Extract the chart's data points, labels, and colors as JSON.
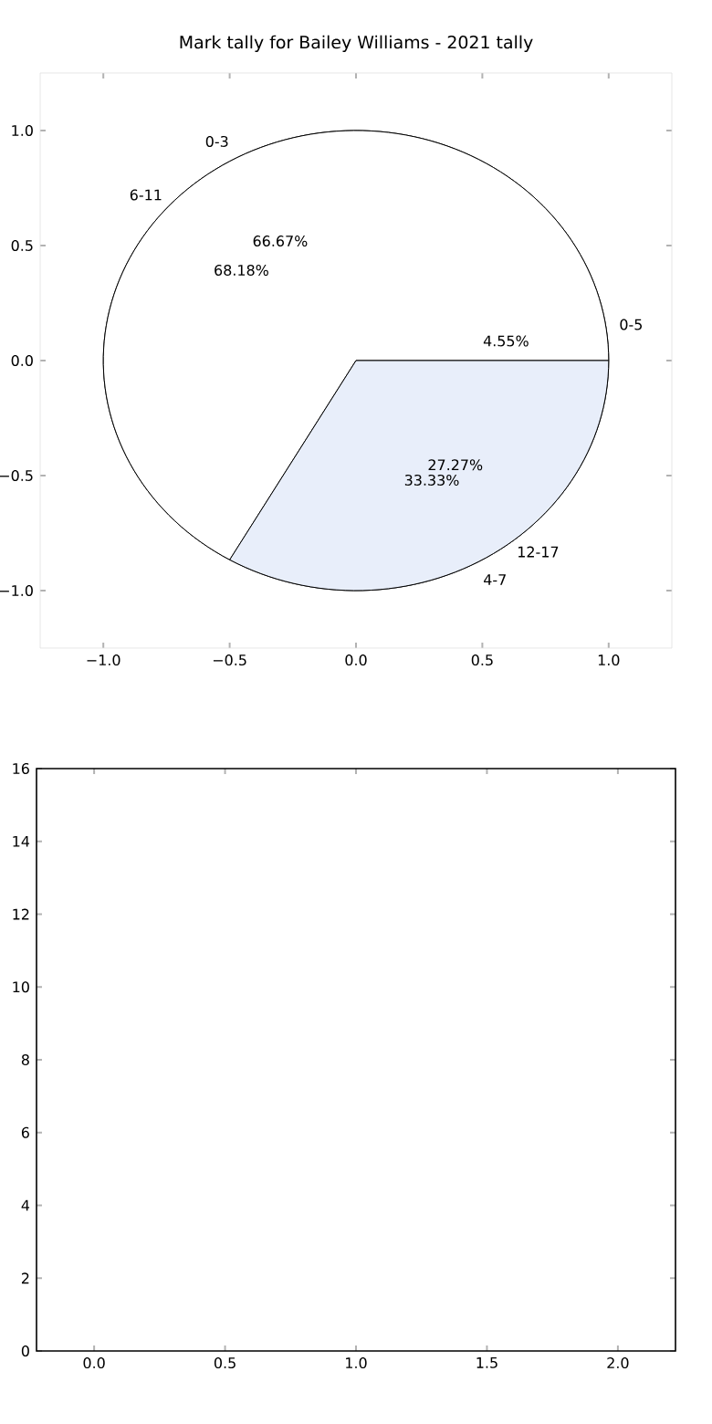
{
  "chart_data": [
    {
      "type": "pie",
      "title": "Mark tally for Bailey Williams - 2021 tally",
      "categories": [
        "0-3",
        "4-7"
      ],
      "values": [
        66.67,
        33.33
      ],
      "colors": [
        "#ffffff",
        "#e8eefa"
      ],
      "value_labels": [
        "66.67%",
        "33.33%"
      ]
    },
    {
      "type": "pie",
      "categories": [
        "0-5",
        "6-11",
        "12-17"
      ],
      "values": [
        4.55,
        68.18,
        27.27
      ],
      "colors": [
        "#ffffff",
        "#ffffff",
        "#e8eefa"
      ],
      "value_labels": [
        "4.55%",
        "68.18%",
        "27.27%"
      ]
    },
    {
      "type": "bar",
      "xlim": [
        -1.25,
        1.25
      ],
      "ylim": [
        -1.25,
        1.25
      ],
      "xticks": [
        {
          "value": -1.0,
          "label": "−1.0"
        },
        {
          "value": -0.5,
          "label": "−0.5"
        },
        {
          "value": 0.0,
          "label": "0.0"
        },
        {
          "value": 0.5,
          "label": "0.5"
        },
        {
          "value": 1.0,
          "label": "1.0"
        }
      ],
      "yticks": [
        {
          "value": -1.0,
          "label": "−1.0"
        },
        {
          "value": -0.5,
          "label": "−0.5"
        },
        {
          "value": 0.0,
          "label": "0.0"
        },
        {
          "value": 0.5,
          "label": "0.5"
        },
        {
          "value": 1.0,
          "label": "1.0"
        }
      ]
    },
    {
      "type": "bar",
      "xlim": [
        -0.22,
        2.22
      ],
      "ylim": [
        0,
        16
      ],
      "xticks": [
        {
          "value": 0.0,
          "label": "0.0"
        },
        0.5,
        {
          "value": 1.0,
          "label": "1.0"
        },
        1.5,
        {
          "value": 2.0,
          "label": "2.0"
        }
      ],
      "yticks": [
        0,
        2,
        4,
        6,
        8,
        10,
        12,
        14,
        16
      ]
    }
  ]
}
